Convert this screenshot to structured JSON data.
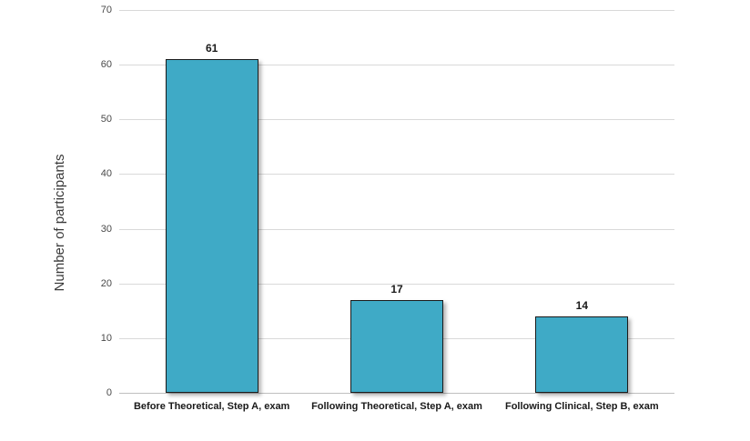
{
  "chart_data": {
    "type": "bar",
    "categories": [
      "Before Theoretical, Step A, exam",
      "Following Theoretical, Step A, exam",
      "Following Clinical, Step B, exam"
    ],
    "values": [
      61,
      17,
      14
    ],
    "data_labels": [
      "61",
      "17",
      "14"
    ],
    "title": "",
    "xlabel": "",
    "ylabel": "Number of participants",
    "ylim": [
      0,
      70
    ],
    "yticks": [
      0,
      10,
      20,
      30,
      40,
      50,
      60,
      70
    ],
    "grid": true,
    "legend_position": "none",
    "bar_color": "#3FAAC6",
    "bar_border_color": "#1B1B1B",
    "gridline_color": "#D9D9D9",
    "axis_line_color": "#BFBFBF",
    "tick_label_color": "#4A4A4A",
    "label_color": "#1A1A1A",
    "background_color": "#FFFFFF"
  }
}
